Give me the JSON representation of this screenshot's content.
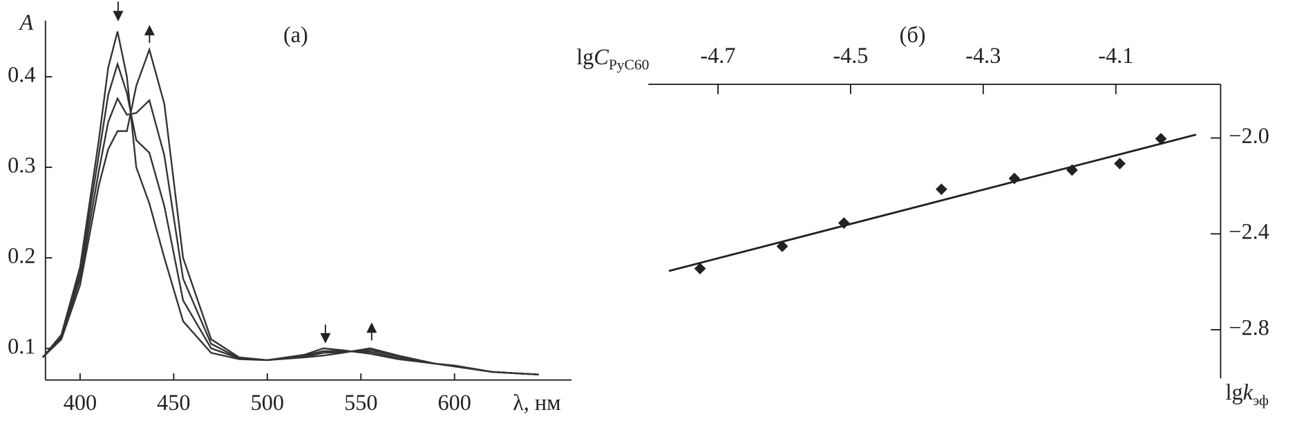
{
  "chart_data": [
    {
      "type": "line",
      "title": "(a)",
      "xlabel": "λ, нм",
      "ylabel": "A",
      "x": [
        380,
        390,
        400,
        410,
        415,
        420,
        425,
        430,
        437,
        445,
        455,
        470,
        485,
        500,
        520,
        530,
        540,
        555,
        570,
        590,
        600,
        620,
        645
      ],
      "series": [
        {
          "color": "#333333",
          "values": [
            0.09,
            0.115,
            0.19,
            0.33,
            0.41,
            0.45,
            0.4,
            0.3,
            0.26,
            0.2,
            0.13,
            0.095,
            0.088,
            0.087,
            0.093,
            0.1,
            0.098,
            0.094,
            0.088,
            0.083,
            0.08,
            0.074,
            0.071
          ]
        },
        {
          "color": "#333333",
          "values": [
            0.09,
            0.113,
            0.183,
            0.314,
            0.38,
            0.414,
            0.382,
            0.33,
            0.316,
            0.257,
            0.153,
            0.1,
            0.089,
            0.087,
            0.092,
            0.097,
            0.097,
            0.096,
            0.089,
            0.083,
            0.08,
            0.074,
            0.071
          ]
        },
        {
          "color": "#333333",
          "values": [
            0.09,
            0.112,
            0.177,
            0.296,
            0.35,
            0.376,
            0.358,
            0.36,
            0.374,
            0.313,
            0.177,
            0.105,
            0.089,
            0.087,
            0.091,
            0.095,
            0.096,
            0.098,
            0.091,
            0.083,
            0.081,
            0.074,
            0.071
          ]
        },
        {
          "color": "#333333",
          "values": [
            0.09,
            0.11,
            0.17,
            0.28,
            0.32,
            0.34,
            0.34,
            0.39,
            0.43,
            0.37,
            0.2,
            0.11,
            0.09,
            0.087,
            0.09,
            0.092,
            0.095,
            0.1,
            0.092,
            0.083,
            0.081,
            0.074,
            0.071
          ]
        }
      ],
      "xlim": [
        381.5,
        662.5
      ],
      "xticks": [
        400,
        450,
        500,
        550,
        600
      ],
      "ylim": [
        0.065,
        0.462
      ],
      "yticks": [
        0.1,
        0.2,
        0.3,
        0.4
      ]
    },
    {
      "type": "scatter",
      "title": "(б)",
      "xlabel": {
        "lg": "lg",
        "var": "C",
        "sub": "PyC60"
      },
      "ylabel": {
        "lg": "lg",
        "var": "k",
        "sub": "эф"
      },
      "x": [
        -4.727,
        -4.603,
        -4.51,
        -4.363,
        -4.253,
        -4.166,
        -4.094,
        -4.032
      ],
      "y": [
        -2.545,
        -2.452,
        -2.355,
        -2.214,
        -2.169,
        -2.134,
        -2.107,
        -2.003
      ],
      "fit": {
        "x": [
          -4.774,
          -3.979
        ],
        "y": [
          -2.555,
          -1.986
        ]
      },
      "color": "#222222",
      "xlim": [
        -4.805,
        -3.942
      ],
      "xticks": [
        -4.7,
        -4.5,
        -4.3,
        -4.1
      ],
      "ylim": [
        -3.003,
        -1.776
      ],
      "yticks": [
        {
          "value": -2.0,
          "label": "−2.0"
        },
        {
          "value": -2.4,
          "label": "−2.4"
        },
        {
          "value": -2.8,
          "label": "−2.8"
        }
      ]
    }
  ]
}
